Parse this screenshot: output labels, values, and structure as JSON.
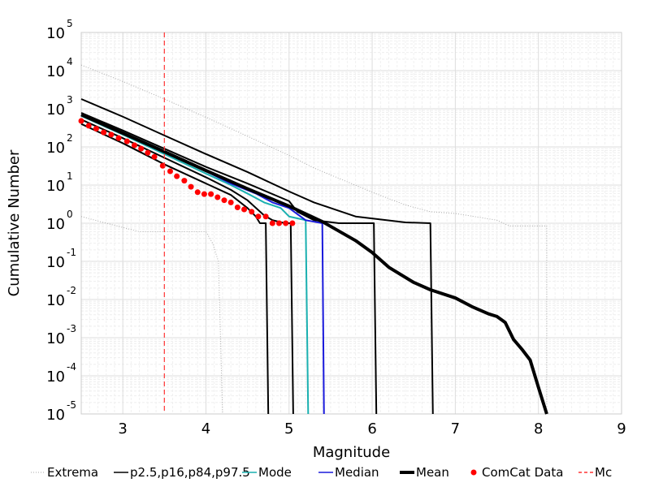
{
  "chart_data": {
    "type": "line",
    "title": "",
    "xlabel": "Magnitude",
    "ylabel": "Cumulative Number",
    "xlim": [
      2.5,
      9
    ],
    "ylim": [
      1e-05,
      100000.0
    ],
    "yscale": "log",
    "grid": true,
    "legend_position": "bottom",
    "x_ticks": [
      3,
      4,
      5,
      6,
      7,
      8,
      9
    ],
    "y_tick_exponents": [
      5,
      4,
      3,
      2,
      1,
      0,
      -1,
      -2,
      -3,
      -4,
      -5
    ],
    "y_tick_base": "10",
    "mc": 3.5,
    "legend": [
      {
        "label": "Extrema",
        "style": "dotted-gray"
      },
      {
        "label": "p2.5,p16,p84,p97.5",
        "style": "black-line"
      },
      {
        "label": "Mode",
        "style": "teal-line"
      },
      {
        "label": "Median",
        "style": "blue-line"
      },
      {
        "label": "Mean",
        "style": "thick-black-line"
      },
      {
        "label": "ComCat Data",
        "style": "red-dot"
      },
      {
        "label": "Mc",
        "style": "red-dashed"
      }
    ],
    "colors": {
      "extrema": "#aaaaaa",
      "percentile": "#000000",
      "mode": "#1ab0b0",
      "median": "#1a1adc",
      "mean": "#000000",
      "comcat": "#ff0000",
      "mc": "#ff3333"
    },
    "series": [
      {
        "name": "Extrema",
        "role": "extrema",
        "points": [
          [
            2.5,
            14000
          ],
          [
            3.0,
            5200
          ],
          [
            3.5,
            1800
          ],
          [
            4.0,
            600
          ],
          [
            4.5,
            190
          ],
          [
            5.0,
            60
          ],
          [
            5.3,
            28
          ],
          [
            5.6,
            15
          ],
          [
            6.0,
            6.5
          ],
          [
            6.4,
            3
          ],
          [
            6.7,
            2
          ],
          [
            7.0,
            1.8
          ],
          [
            7.5,
            1.2
          ],
          [
            7.65,
            0.85
          ],
          [
            8.1,
            0.85
          ],
          [
            8.1,
            1e-05
          ]
        ]
      },
      {
        "name": "Extrema",
        "role": "extrema",
        "points": [
          [
            2.5,
            1.5
          ],
          [
            2.8,
            1
          ],
          [
            3.2,
            0.6
          ],
          [
            3.6,
            0.6
          ],
          [
            3.9,
            0.6
          ],
          [
            4.0,
            0.6
          ],
          [
            4.08,
            0.3
          ],
          [
            4.15,
            0.1
          ],
          [
            4.2,
            1e-05
          ]
        ]
      },
      {
        "name": "p97.5",
        "role": "percentile",
        "points": [
          [
            2.5,
            1800
          ],
          [
            3.0,
            620
          ],
          [
            3.5,
            200
          ],
          [
            4.0,
            65
          ],
          [
            4.5,
            22
          ],
          [
            5.0,
            6.8
          ],
          [
            5.3,
            3.5
          ],
          [
            5.5,
            2.5
          ],
          [
            5.8,
            1.5
          ],
          [
            6.4,
            1.05
          ],
          [
            6.7,
            1.0
          ],
          [
            6.73,
            1e-05
          ]
        ]
      },
      {
        "name": "p84",
        "role": "percentile",
        "points": [
          [
            2.5,
            780
          ],
          [
            3.0,
            270
          ],
          [
            3.5,
            90
          ],
          [
            4.0,
            30
          ],
          [
            4.5,
            11
          ],
          [
            5.0,
            3.8
          ],
          [
            5.1,
            2.0
          ],
          [
            5.3,
            1.2
          ],
          [
            5.6,
            1.0
          ],
          [
            6.02,
            1.0
          ],
          [
            6.05,
            1e-05
          ]
        ]
      },
      {
        "name": "p16",
        "role": "percentile",
        "points": [
          [
            2.5,
            520
          ],
          [
            3.0,
            170
          ],
          [
            3.5,
            52
          ],
          [
            4.0,
            16
          ],
          [
            4.3,
            7.5
          ],
          [
            4.5,
            4
          ],
          [
            4.7,
            1.6
          ],
          [
            4.8,
            1.2
          ],
          [
            4.95,
            1.0
          ],
          [
            5.02,
            1.0
          ],
          [
            5.05,
            1e-05
          ]
        ]
      },
      {
        "name": "p2.5",
        "role": "percentile",
        "points": [
          [
            2.5,
            400
          ],
          [
            3.0,
            125
          ],
          [
            3.5,
            35
          ],
          [
            4.0,
            11
          ],
          [
            4.3,
            5.5
          ],
          [
            4.5,
            2.5
          ],
          [
            4.6,
            1.5
          ],
          [
            4.65,
            1.0
          ],
          [
            4.72,
            1.0
          ],
          [
            4.75,
            1e-05
          ]
        ]
      },
      {
        "name": "Mode",
        "role": "mode",
        "points": [
          [
            2.5,
            650
          ],
          [
            3.0,
            210
          ],
          [
            3.5,
            65
          ],
          [
            4.0,
            20
          ],
          [
            4.3,
            10
          ],
          [
            4.5,
            6
          ],
          [
            4.7,
            3.5
          ],
          [
            4.9,
            2.5
          ],
          [
            5.0,
            1.5
          ],
          [
            5.2,
            1.2
          ],
          [
            5.23,
            1e-05
          ]
        ]
      },
      {
        "name": "Median",
        "role": "median",
        "points": [
          [
            2.5,
            700
          ],
          [
            3.0,
            230
          ],
          [
            3.5,
            72
          ],
          [
            4.0,
            23
          ],
          [
            4.3,
            11
          ],
          [
            4.6,
            6
          ],
          [
            4.8,
            3.5
          ],
          [
            5.0,
            2.5
          ],
          [
            5.2,
            1.2
          ],
          [
            5.4,
            1.0
          ],
          [
            5.42,
            1e-05
          ]
        ]
      },
      {
        "name": "Mean",
        "role": "mean",
        "points": [
          [
            2.5,
            700
          ],
          [
            3.0,
            230
          ],
          [
            3.5,
            75
          ],
          [
            4.0,
            24
          ],
          [
            4.5,
            8
          ],
          [
            5.0,
            2.8
          ],
          [
            5.4,
            1.1
          ],
          [
            5.8,
            0.35
          ],
          [
            6.0,
            0.17
          ],
          [
            6.2,
            0.07
          ],
          [
            6.5,
            0.028
          ],
          [
            6.7,
            0.018
          ],
          [
            7.0,
            0.011
          ],
          [
            7.2,
            0.0065
          ],
          [
            7.4,
            0.0042
          ],
          [
            7.5,
            0.0036
          ],
          [
            7.6,
            0.0025
          ],
          [
            7.7,
            0.0009
          ],
          [
            7.8,
            0.0005
          ],
          [
            7.9,
            0.00026
          ],
          [
            8.0,
            5e-05
          ],
          [
            8.1,
            1e-05
          ]
        ]
      }
    ],
    "comcat_points": [
      [
        2.5,
        480
      ],
      [
        2.59,
        360
      ],
      [
        2.68,
        300
      ],
      [
        2.77,
        240
      ],
      [
        2.86,
        210
      ],
      [
        2.95,
        170
      ],
      [
        3.05,
        140
      ],
      [
        3.14,
        110
      ],
      [
        3.22,
        90
      ],
      [
        3.3,
        70
      ],
      [
        3.38,
        55
      ],
      [
        3.48,
        32
      ],
      [
        3.57,
        23
      ],
      [
        3.65,
        17
      ],
      [
        3.74,
        13
      ],
      [
        3.82,
        9
      ],
      [
        3.9,
        6.5
      ],
      [
        3.98,
        5.8
      ],
      [
        4.06,
        5.8
      ],
      [
        4.14,
        4.8
      ],
      [
        4.22,
        4.0
      ],
      [
        4.3,
        3.5
      ],
      [
        4.38,
        2.6
      ],
      [
        4.46,
        2.3
      ],
      [
        4.55,
        2.0
      ],
      [
        4.63,
        1.5
      ],
      [
        4.72,
        1.5
      ],
      [
        4.8,
        1.0
      ],
      [
        4.88,
        1.0
      ],
      [
        4.96,
        1.0
      ],
      [
        5.04,
        1.0
      ]
    ]
  }
}
